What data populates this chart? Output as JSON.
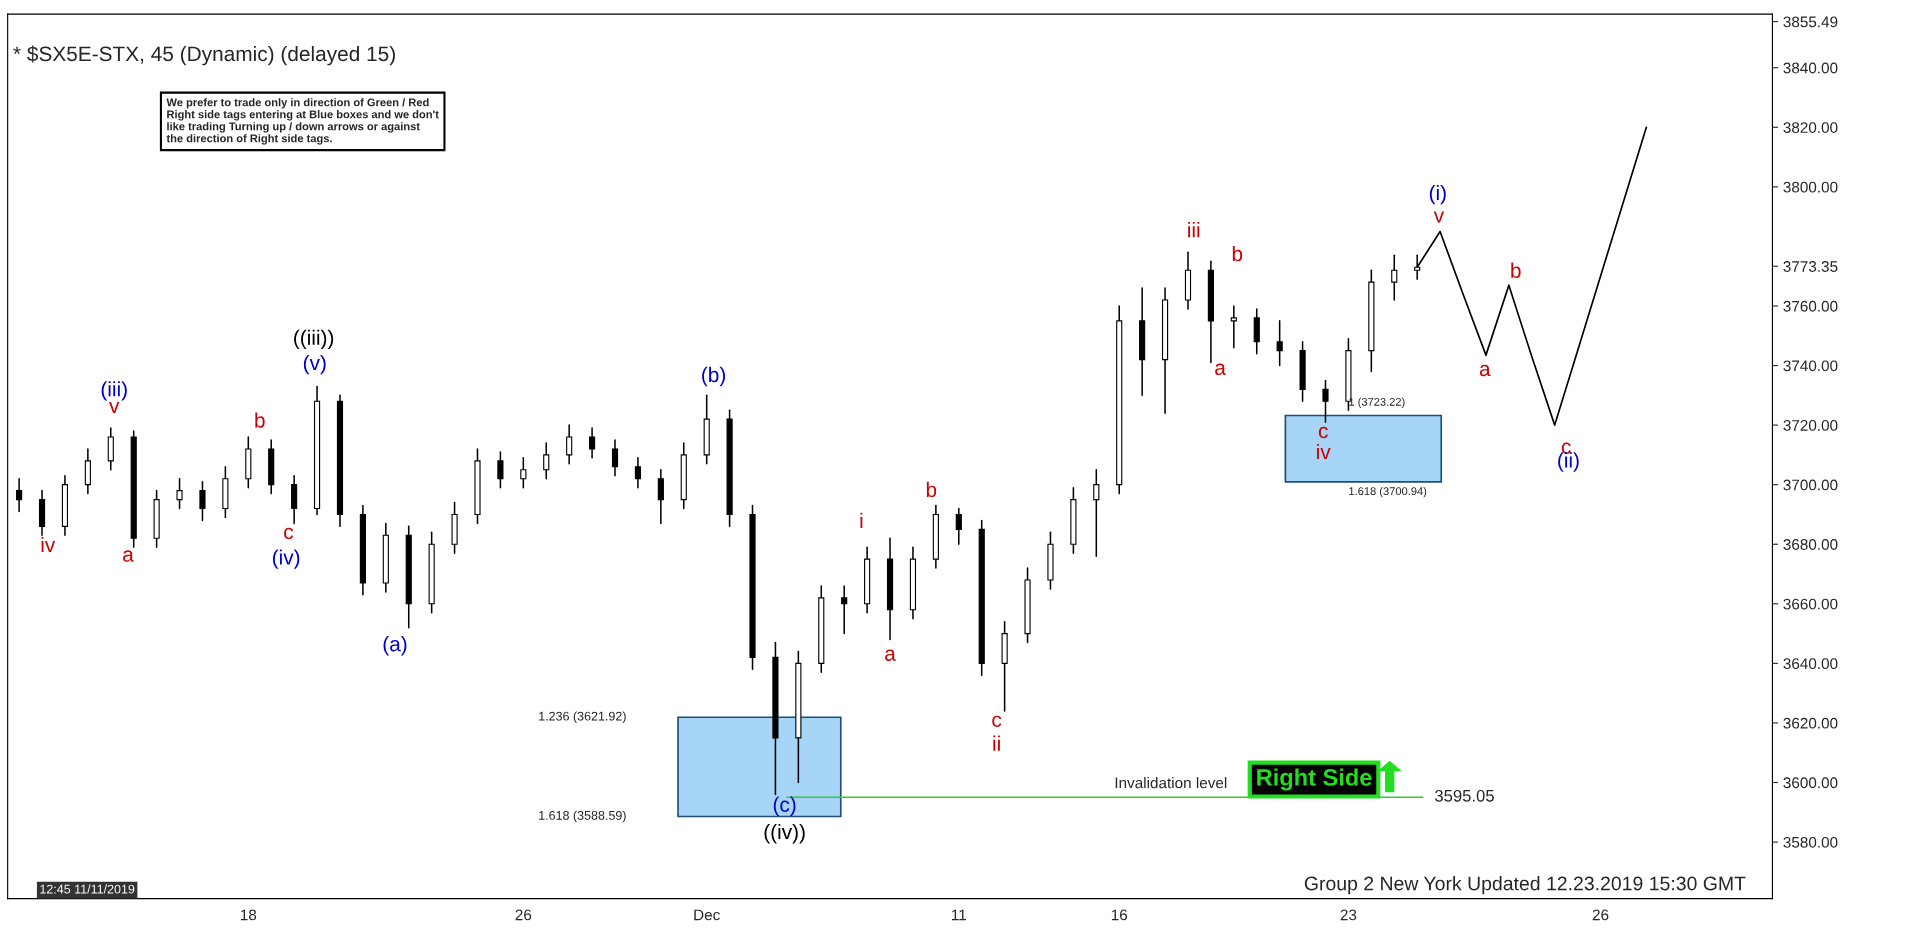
{
  "chart_data": {
    "type": "candlestick",
    "title": "* $SX5E-STX, 45 (Dynamic) (delayed 15)",
    "categories": [
      null,
      null,
      null,
      null,
      null,
      null,
      null,
      null,
      null,
      null,
      "18",
      null,
      null,
      null,
      null,
      null,
      null,
      null,
      null,
      null,
      null,
      null,
      "26",
      null,
      null,
      null,
      null,
      null,
      null,
      null,
      "Dec",
      null,
      null,
      null,
      null,
      null,
      null,
      null,
      null,
      null,
      null,
      "11",
      null,
      null,
      null,
      null,
      null,
      null,
      "16",
      null,
      null,
      null,
      null,
      null,
      null,
      null,
      null,
      null,
      "23",
      null,
      null,
      null,
      null,
      null,
      null,
      null,
      null,
      null,
      null,
      "26",
      null,
      null,
      null,
      null,
      null,
      null,
      null
    ],
    "ohlc": [
      [
        3698,
        3702,
        3691,
        3695
      ],
      [
        3695,
        3698,
        3683,
        3686
      ],
      [
        3686,
        3703,
        3683,
        3700
      ],
      [
        3700,
        3712,
        3697,
        3708
      ],
      [
        3708,
        3719,
        3705,
        3716
      ],
      [
        3716,
        3718,
        3679,
        3682
      ],
      [
        3682,
        3698,
        3679,
        3695
      ],
      [
        3695,
        3702,
        3692,
        3698
      ],
      [
        3698,
        3701,
        3688,
        3692
      ],
      [
        3692,
        3706,
        3689,
        3702
      ],
      [
        3702,
        3716,
        3699,
        3712
      ],
      [
        3712,
        3715,
        3697,
        3700
      ],
      [
        3700,
        3703,
        3687,
        3692
      ],
      [
        3692,
        3733,
        3690,
        3728
      ],
      [
        3728,
        3730,
        3686,
        3690
      ],
      [
        3690,
        3693,
        3663,
        3667
      ],
      [
        3667,
        3687,
        3664,
        3683
      ],
      [
        3683,
        3686,
        3652,
        3660
      ],
      [
        3660,
        3684,
        3657,
        3680
      ],
      [
        3680,
        3694,
        3677,
        3690
      ],
      [
        3690,
        3712,
        3687,
        3708
      ],
      [
        3708,
        3711,
        3699,
        3702
      ],
      [
        3702,
        3709,
        3699,
        3705
      ],
      [
        3705,
        3714,
        3702,
        3710
      ],
      [
        3710,
        3720,
        3707,
        3716
      ],
      [
        3716,
        3719,
        3709,
        3712
      ],
      [
        3712,
        3715,
        3703,
        3706
      ],
      [
        3706,
        3709,
        3699,
        3702
      ],
      [
        3702,
        3705,
        3687,
        3695
      ],
      [
        3695,
        3714,
        3692,
        3710
      ],
      [
        3710,
        3730,
        3707,
        3722
      ],
      [
        3722,
        3725,
        3686,
        3690
      ],
      [
        3690,
        3693,
        3638,
        3642
      ],
      [
        3642,
        3647,
        3596,
        3615
      ],
      [
        3615,
        3644,
        3600,
        3640
      ],
      [
        3640,
        3666,
        3637,
        3662
      ],
      [
        3662,
        3666,
        3650,
        3660
      ],
      [
        3660,
        3679,
        3657,
        3675
      ],
      [
        3675,
        3682,
        3648,
        3658
      ],
      [
        3658,
        3679,
        3655,
        3675
      ],
      [
        3675,
        3693,
        3672,
        3690
      ],
      [
        3690,
        3692,
        3680,
        3685
      ],
      [
        3685,
        3688,
        3636,
        3640
      ],
      [
        3640,
        3654,
        3624,
        3650
      ],
      [
        3650,
        3672,
        3647,
        3668
      ],
      [
        3668,
        3684,
        3665,
        3680
      ],
      [
        3680,
        3699,
        3677,
        3695
      ],
      [
        3695,
        3705,
        3676,
        3700
      ],
      [
        3700,
        3760,
        3697,
        3755
      ],
      [
        3755,
        3766,
        3730,
        3742
      ],
      [
        3742,
        3766,
        3724,
        3762
      ],
      [
        3762,
        3778,
        3759,
        3772
      ],
      [
        3772,
        3775,
        3741,
        3755
      ],
      [
        3755,
        3760,
        3746,
        3756
      ],
      [
        3756,
        3759,
        3744,
        3748
      ],
      [
        3748,
        3755,
        3740,
        3745
      ],
      [
        3745,
        3748,
        3728,
        3732
      ],
      [
        3732,
        3735,
        3721,
        3728
      ],
      [
        3728,
        3749,
        3725,
        3745
      ],
      [
        3745,
        3772,
        3738,
        3768
      ],
      [
        3768,
        3777,
        3762,
        3772
      ],
      [
        3772,
        3777,
        3769,
        3773
      ],
      null,
      null,
      null,
      null,
      null,
      null,
      null,
      null,
      null,
      null,
      null,
      null,
      null,
      null,
      null
    ],
    "color": "#000000",
    "series": [
      {
        "type": "line",
        "color": "#000000",
        "values": [
          null,
          null,
          null,
          null,
          null,
          null,
          null,
          null,
          null,
          null,
          null,
          null,
          null,
          null,
          null,
          null,
          null,
          null,
          null,
          null,
          null,
          null,
          null,
          null,
          null,
          null,
          null,
          null,
          null,
          null,
          null,
          null,
          null,
          null,
          null,
          null,
          null,
          null,
          null,
          null,
          null,
          null,
          null,
          null,
          null,
          null,
          null,
          null,
          null,
          null,
          null,
          null,
          null,
          null,
          null,
          null,
          null,
          null,
          null,
          null,
          null,
          3773,
          3785,
          3764,
          3743.5,
          3767,
          3743,
          3720,
          3745,
          3770,
          3795,
          3820,
          null,
          null,
          null,
          null,
          null
        ]
      }
    ],
    "ylim": [
      3561,
      3858
    ],
    "yticks": [
      {
        "value": 3580,
        "label": "3580.00"
      },
      {
        "value": 3600,
        "label": "3600.00"
      },
      {
        "value": 3620,
        "label": "3620.00"
      },
      {
        "value": 3640,
        "label": "3640.00"
      },
      {
        "value": 3660,
        "label": "3660.00"
      },
      {
        "value": 3680,
        "label": "3680.00"
      },
      {
        "value": 3700,
        "label": "3700.00"
      },
      {
        "value": 3720,
        "label": "3720.00"
      },
      {
        "value": 3740,
        "label": "3740.00"
      },
      {
        "value": 3760,
        "label": "3760.00"
      },
      {
        "value": 3773.35,
        "label": "3773.35"
      },
      {
        "value": 3800,
        "label": "3800.00"
      },
      {
        "value": 3820,
        "label": "3820.00"
      },
      {
        "value": 3840,
        "label": "3840.00"
      },
      {
        "value": 3855.49,
        "label": "3855.49"
      }
    ],
    "bands": [
      {
        "axis": "y",
        "from": 3588.59,
        "to": 3621.92,
        "color": "#a6d5f7"
      },
      {
        "axis": "y",
        "from": 3700.94,
        "to": 3723.22,
        "color": "#a6d5f7"
      }
    ],
    "ref_lines": [
      {
        "axis": "y",
        "value": 3595.05,
        "label": "Invalidation level",
        "color": "#33cc33"
      }
    ],
    "annotations": [
      "We prefer to trade only in direction of Green / Red\nRight side tags entering at Blue boxes and we don't\nlike trading Turning up / down arrows or against\nthe direction of Right side tags.",
      "12:45 11/11/2019",
      "Group 2 New York Updated 12.23.2019 15:30 GMT",
      "Right Side",
      "3595.05",
      "1.236 (3621.92)",
      "1.618 (3588.59)",
      "1 (3723.22)",
      "1.618 (3700.94)",
      "iv",
      "a",
      "v",
      "(iii)",
      "b",
      "c",
      "(iv)",
      "(v)",
      "((iii))",
      "(a)",
      "(b)",
      "(c)",
      "((iv))",
      "i",
      "a",
      "b",
      "c",
      "ii",
      "iii",
      "b",
      "a",
      "c",
      "iv",
      "(i)",
      "v",
      "a",
      "b",
      "c",
      "(ii)"
    ]
  }
}
